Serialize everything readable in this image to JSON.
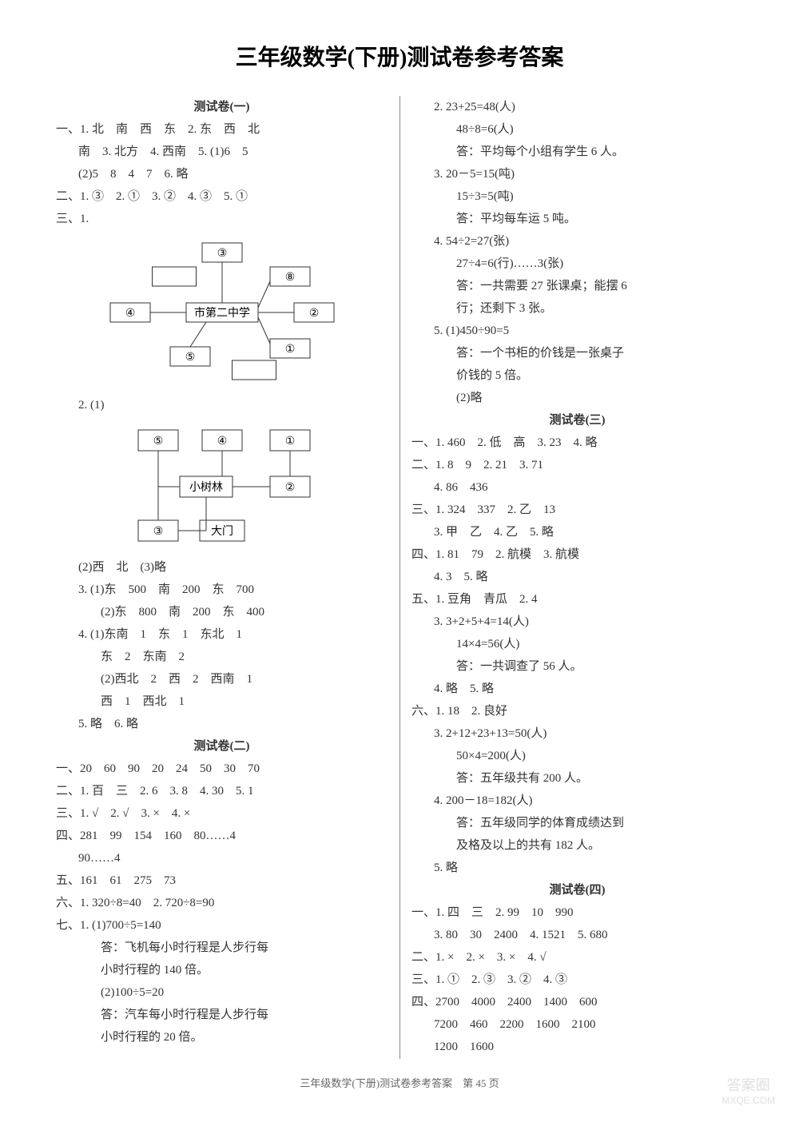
{
  "title": "三年级数学(下册)测试卷参考答案",
  "footer": "三年级数学(下册)测试卷参考答案　第 45 页",
  "watermark_top": "答案圈",
  "watermark_bottom": "MXQE.COM",
  "left": {
    "t1_title": "测试卷(一)",
    "t1_l1": "一、1. 北　南　西　东　2. 东　西　北",
    "t1_l2": "南　3. 北方　4. 西南　5. (1)6　5",
    "t1_l3": "(2)5　8　4　7　6. 略",
    "t1_l4": "二、1. ③　2. ①　3. ②　4. ③　5. ①",
    "t1_l5": "三、1.",
    "t1_q2": "2. (1)",
    "t1_q2b": "(2)西　北　(3)略",
    "t1_q3a": "3. (1)东　500　南　200　东　700",
    "t1_q3b": "(2)东　800　南　200　东　400",
    "t1_q4a": "4. (1)东南　1　东　1　东北　1",
    "t1_q4b": "东　2　东南　2",
    "t1_q4c": "(2)西北　2　西　2　西南　1",
    "t1_q4d": "西　1　西北　1",
    "t1_q5": "5. 略　6. 略",
    "t2_title": "测试卷(二)",
    "t2_l1": "一、20　60　90　20　24　50　30　70",
    "t2_l2": "二、1. 百　三　2. 6　3. 8　4. 30　5. 1",
    "t2_l3": "三、1. √　2. √　3. ×　4. ×",
    "t2_l4": "四、281　99　154　160　80……4",
    "t2_l4b": "90……4",
    "t2_l5": "五、161　61　275　73",
    "t2_l6": "六、1. 320÷8=40　2. 720÷8=90",
    "t2_l7": "七、1. (1)700÷5=140",
    "t2_l7b": "答：飞机每小时行程是人步行每",
    "t2_l7c": "小时行程的 140 倍。",
    "t2_l7d": "(2)100÷5=20",
    "t2_l7e": "答：汽车每小时行程是人步行每",
    "t2_l7f": "小时行程的 20 倍。"
  },
  "right": {
    "r2a": "2. 23+25=48(人)",
    "r2b": "48÷8=6(人)",
    "r2c": "答：平均每个小组有学生 6 人。",
    "r3a": "3. 20－5=15(吨)",
    "r3b": "15÷3=5(吨)",
    "r3c": "答：平均每车运 5 吨。",
    "r4a": "4. 54÷2=27(张)",
    "r4b": "27÷4=6(行)……3(张)",
    "r4c": "答：一共需要 27 张课桌；能摆 6",
    "r4d": "行；还剩下 3 张。",
    "r5a": "5. (1)450÷90=5",
    "r5b": "答：一个书柜的价钱是一张桌子",
    "r5c": "价钱的 5 倍。",
    "r5d": "(2)略",
    "t3_title": "测试卷(三)",
    "t3_l1": "一、1. 460　2. 低　高　3. 23　4. 略",
    "t3_l2": "二、1. 8　9　2. 21　3. 71",
    "t3_l2b": "4. 86　436",
    "t3_l3": "三、1. 324　337　2. 乙　13",
    "t3_l3b": "3. 甲　乙　4. 乙　5. 略",
    "t3_l4": "四、1. 81　79　2. 航模　3. 航模",
    "t3_l4b": "4. 3　5. 略",
    "t3_l5": "五、1. 豆角　青瓜　2. 4",
    "t3_l5b": "3. 3+2+5+4=14(人)",
    "t3_l5c": "14×4=56(人)",
    "t3_l5d": "答：一共调查了 56 人。",
    "t3_l5e": "4. 略　5. 略",
    "t3_l6": "六、1. 18　2. 良好",
    "t3_l6b": "3. 2+12+23+13=50(人)",
    "t3_l6c": "50×4=200(人)",
    "t3_l6d": "答：五年级共有 200 人。",
    "t3_l6e": "4. 200－18=182(人)",
    "t3_l6f": "答：五年级同学的体育成绩达到",
    "t3_l6g": "及格及以上的共有 182 人。",
    "t3_l6h": "5. 略",
    "t4_title": "测试卷(四)",
    "t4_l1": "一、1. 四　三　2. 99　10　990",
    "t4_l1b": "3. 80　30　2400　4. 1521　5. 680",
    "t4_l2": "二、1. ×　2. ×　3. ×　4. √",
    "t4_l3": "三、1. ①　2. ③　3. ②　4. ③",
    "t4_l4": "四、2700　4000　2400　1400　600",
    "t4_l4b": "7200　460　2200　1600　2100",
    "t4_l4c": "1200　1600"
  },
  "diagram1": {
    "center": "市第二中学",
    "labels": {
      "n": "③",
      "ne": "⑧",
      "e": "②",
      "se": "①",
      "s": "⑤",
      "w": "④"
    },
    "stroke": "#333333",
    "fill": "#ffffff",
    "font": 14
  },
  "diagram2": {
    "top": {
      "l": "⑤",
      "m": "④",
      "r": "①"
    },
    "mid": {
      "l": "小树林",
      "r": "②"
    },
    "bot": {
      "l": "③",
      "r": "大门"
    },
    "stroke": "#333333",
    "fill": "#ffffff",
    "font": 14
  }
}
